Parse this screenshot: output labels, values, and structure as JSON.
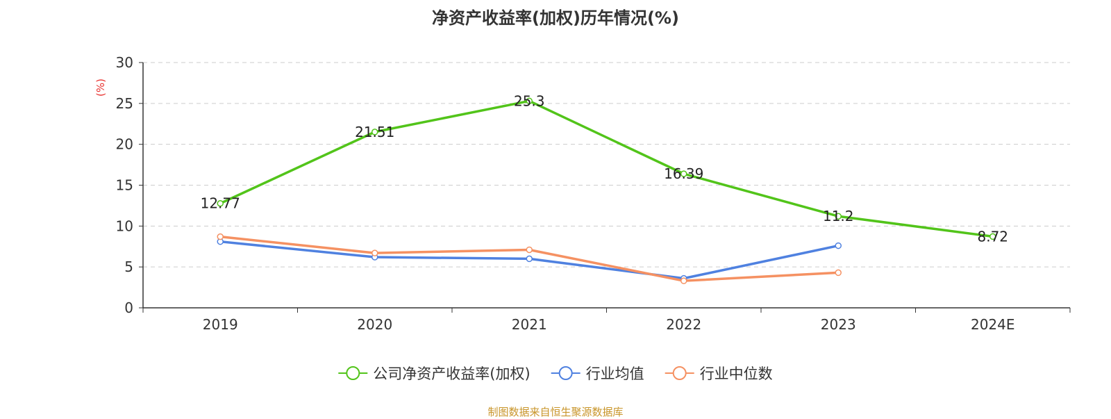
{
  "chart_data": {
    "type": "line",
    "title": "净资产收益率(加权)历年情况(%)",
    "ylabel": "(%)",
    "xlabel": "",
    "categories": [
      "2019",
      "2020",
      "2021",
      "2022",
      "2023",
      "2024E"
    ],
    "ylim": [
      0,
      30
    ],
    "yticks": [
      0,
      5,
      10,
      15,
      20,
      25,
      30
    ],
    "grid": "horizontal-dashed",
    "legend_position": "bottom",
    "series": [
      {
        "name": "公司净资产收益率(加权)",
        "color": "#52c41a",
        "values": [
          12.77,
          21.51,
          25.3,
          16.39,
          11.2,
          8.72
        ],
        "labels": [
          "12.77",
          "21.51",
          "25.3",
          "16.39",
          "11.2",
          "8.72"
        ]
      },
      {
        "name": "行业均值",
        "color": "#4f81e0",
        "values": [
          8.1,
          6.2,
          6.0,
          3.6,
          7.6,
          null
        ]
      },
      {
        "name": "行业中位数",
        "color": "#f59162",
        "values": [
          8.7,
          6.7,
          7.1,
          3.3,
          4.3,
          null
        ]
      }
    ]
  },
  "footer": {
    "source": "制图数据来自恒生聚源数据库"
  }
}
